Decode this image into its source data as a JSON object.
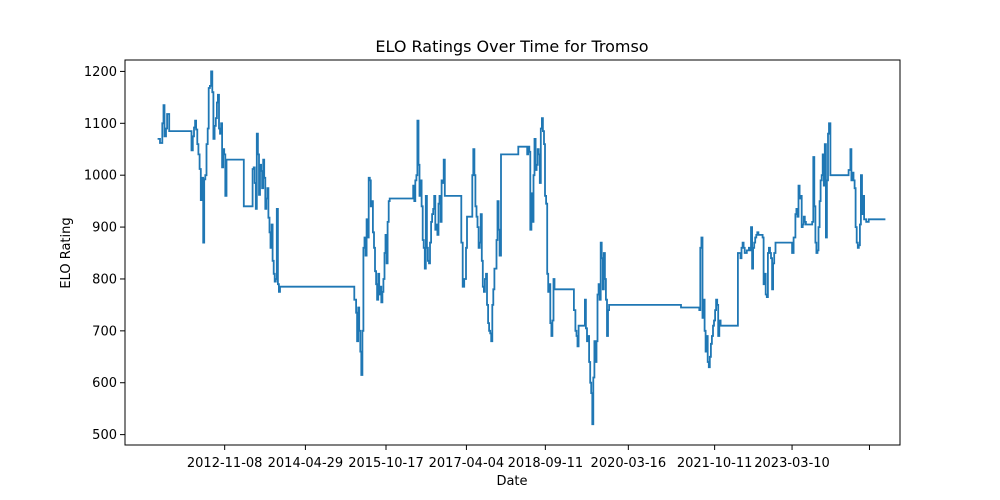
{
  "chart_data": {
    "type": "line",
    "title": "ELO Ratings Over Time for Tromso",
    "xlabel": "Date",
    "ylabel": "ELO Rating",
    "x_tick_labels": [
      "2012-11-08",
      "2014-04-29",
      "2015-10-17",
      "2017-04-04",
      "2018-09-11",
      "2020-03-16",
      "2021-10-11",
      "2023-03-10"
    ],
    "y_ticks": [
      500,
      600,
      700,
      800,
      900,
      1000,
      1100,
      1200
    ],
    "xlim": [
      "2011-01-15",
      "2025-02-25"
    ],
    "ylim": [
      480,
      1222
    ],
    "grid": false,
    "line_color": "#1f77b4",
    "series": [
      {
        "x": [
          "2011-08-20",
          "2011-09-05",
          "2011-09-20",
          "2011-09-28",
          "2011-10-05",
          "2011-10-15",
          "2011-10-22",
          "2011-11-05",
          "2012-04-01",
          "2012-04-10",
          "2012-04-18",
          "2012-04-25",
          "2012-05-02",
          "2012-05-10",
          "2012-05-17",
          "2012-05-25",
          "2012-06-02",
          "2012-06-10",
          "2012-06-18",
          "2012-06-25",
          "2012-07-02",
          "2012-07-10",
          "2012-07-18",
          "2012-07-25",
          "2012-08-02",
          "2012-08-10",
          "2012-08-18",
          "2012-08-25",
          "2012-09-02",
          "2012-09-10",
          "2012-09-17",
          "2012-09-24",
          "2012-10-01",
          "2012-10-08",
          "2012-10-15",
          "2012-10-22",
          "2012-10-29",
          "2012-11-05",
          "2012-11-12",
          "2012-11-20",
          "2013-03-15",
          "2013-04-01",
          "2013-04-08",
          "2013-04-15",
          "2013-04-22",
          "2013-04-29",
          "2013-05-06",
          "2013-05-13",
          "2013-05-20",
          "2013-05-27",
          "2013-06-03",
          "2013-06-10",
          "2013-06-17",
          "2013-06-24",
          "2013-07-01",
          "2013-07-08",
          "2013-07-15",
          "2013-07-22",
          "2013-07-29",
          "2013-08-05",
          "2013-08-12",
          "2013-08-19",
          "2013-08-26",
          "2013-09-02",
          "2013-09-09",
          "2013-09-16",
          "2013-09-23",
          "2013-09-30",
          "2013-10-07",
          "2013-10-14",
          "2013-10-21",
          "2013-10-28",
          "2013-11-04",
          "2013-11-11",
          "2015-03-10",
          "2015-03-20",
          "2015-04-01",
          "2015-04-08",
          "2015-04-15",
          "2015-04-22",
          "2015-04-29",
          "2015-05-06",
          "2015-05-13",
          "2015-05-20",
          "2015-05-27",
          "2015-06-03",
          "2015-06-10",
          "2015-06-17",
          "2015-06-24",
          "2015-07-01",
          "2015-07-08",
          "2015-07-15",
          "2015-07-22",
          "2015-07-29",
          "2015-08-05",
          "2015-08-12",
          "2015-08-19",
          "2015-08-26",
          "2015-09-02",
          "2015-09-09",
          "2015-09-16",
          "2015-09-23",
          "2015-09-30",
          "2015-10-07",
          "2015-10-14",
          "2015-10-21",
          "2015-10-28",
          "2015-11-04",
          "2015-11-11",
          "2016-03-01",
          "2016-03-10",
          "2016-03-20",
          "2016-04-01",
          "2016-04-08",
          "2016-04-15",
          "2016-04-22",
          "2016-04-29",
          "2016-05-06",
          "2016-05-13",
          "2016-05-20",
          "2016-05-27",
          "2016-06-03",
          "2016-06-10",
          "2016-06-17",
          "2016-06-24",
          "2016-07-01",
          "2016-07-08",
          "2016-07-15",
          "2016-07-22",
          "2016-07-29",
          "2016-08-05",
          "2016-08-12",
          "2016-08-19",
          "2016-08-26",
          "2016-09-02",
          "2016-09-09",
          "2016-09-16",
          "2016-09-23",
          "2016-09-30",
          "2016-10-07",
          "2016-10-14",
          "2016-10-21",
          "2016-10-28",
          "2016-11-04",
          "2016-11-11",
          "2017-03-01",
          "2017-03-10",
          "2017-03-20",
          "2017-04-01",
          "2017-04-08",
          "2017-04-15",
          "2017-04-22",
          "2017-04-29",
          "2017-05-06",
          "2017-05-13",
          "2017-05-20",
          "2017-05-27",
          "2017-06-03",
          "2017-06-10",
          "2017-06-17",
          "2017-06-24",
          "2017-07-01",
          "2017-07-08",
          "2017-07-15",
          "2017-07-22",
          "2017-07-29",
          "2017-08-05",
          "2017-08-12",
          "2017-08-19",
          "2017-08-26",
          "2017-09-02",
          "2017-09-09",
          "2017-09-16",
          "2017-09-23",
          "2017-09-30",
          "2017-10-07",
          "2017-10-14",
          "2017-10-21",
          "2017-10-28",
          "2017-11-04",
          "2017-11-11",
          "2017-11-20",
          "2018-03-15",
          "2018-04-01",
          "2018-04-08",
          "2018-04-15",
          "2018-04-22",
          "2018-04-29",
          "2018-05-06",
          "2018-05-13",
          "2018-05-20",
          "2018-05-27",
          "2018-06-03",
          "2018-06-10",
          "2018-06-17",
          "2018-06-24",
          "2018-07-01",
          "2018-07-08",
          "2018-07-15",
          "2018-07-22",
          "2018-07-29",
          "2018-08-05",
          "2018-08-12",
          "2018-08-19",
          "2018-08-26",
          "2018-09-02",
          "2018-09-09",
          "2018-09-16",
          "2018-09-23",
          "2018-09-30",
          "2018-10-07",
          "2018-10-14",
          "2018-10-21",
          "2018-10-28",
          "2018-11-04",
          "2018-11-11",
          "2019-03-20",
          "2019-03-30",
          "2019-04-06",
          "2019-04-13",
          "2019-04-20",
          "2019-04-27",
          "2019-05-04",
          "2019-05-11",
          "2019-05-18",
          "2019-05-25",
          "2019-06-01",
          "2019-06-08",
          "2019-06-15",
          "2019-06-22",
          "2019-06-29",
          "2019-07-06",
          "2019-07-13",
          "2019-07-20",
          "2019-07-27",
          "2019-08-03",
          "2019-08-10",
          "2019-08-17",
          "2019-08-24",
          "2019-08-31",
          "2019-09-07",
          "2019-09-14",
          "2019-09-21",
          "2019-09-28",
          "2019-10-05",
          "2019-10-12",
          "2019-10-19",
          "2019-10-26",
          "2019-11-02",
          "2019-11-09",
          "2021-03-01",
          "2021-03-10",
          "2021-03-20",
          "2021-04-01",
          "2021-04-08",
          "2021-04-15",
          "2021-04-22",
          "2021-04-29",
          "2021-05-06",
          "2021-05-13",
          "2021-05-20",
          "2021-05-27",
          "2021-06-03",
          "2021-06-10",
          "2021-06-17",
          "2021-06-24",
          "2021-07-01",
          "2021-07-08",
          "2021-07-15",
          "2021-07-22",
          "2021-07-29",
          "2021-08-05",
          "2021-08-12",
          "2021-08-19",
          "2021-08-26",
          "2021-09-02",
          "2021-09-09",
          "2021-09-16",
          "2021-09-23",
          "2021-09-30",
          "2021-10-07",
          "2021-10-14",
          "2021-10-21",
          "2021-10-28",
          "2021-11-04",
          "2021-11-11",
          "2021-11-20",
          "2022-03-15",
          "2022-04-01",
          "2022-04-08",
          "2022-04-15",
          "2022-04-22",
          "2022-04-29",
          "2022-05-06",
          "2022-05-13",
          "2022-05-20",
          "2022-05-27",
          "2022-06-03",
          "2022-06-10",
          "2022-06-17",
          "2022-06-24",
          "2022-07-01",
          "2022-07-08",
          "2022-07-15",
          "2022-07-22",
          "2022-07-29",
          "2022-08-05",
          "2022-08-12",
          "2022-08-19",
          "2022-08-26",
          "2022-09-02",
          "2022-09-09",
          "2022-09-16",
          "2022-09-23",
          "2022-09-30",
          "2022-10-07",
          "2022-10-14",
          "2022-10-21",
          "2022-10-28",
          "2022-11-04",
          "2022-11-11",
          "2022-11-20",
          "2023-03-10",
          "2023-03-20",
          "2023-04-01",
          "2023-04-08",
          "2023-04-15",
          "2023-04-22",
          "2023-04-29",
          "2023-05-06",
          "2023-05-13",
          "2023-05-20",
          "2023-05-27",
          "2023-06-03",
          "2023-06-10",
          "2023-06-17",
          "2023-06-24",
          "2023-07-01",
          "2023-07-08",
          "2023-07-15",
          "2023-07-22",
          "2023-07-29",
          "2023-08-05",
          "2023-08-12",
          "2023-08-19",
          "2023-08-26",
          "2023-09-02",
          "2023-09-09",
          "2023-09-16",
          "2023-09-23",
          "2023-09-30",
          "2023-10-07",
          "2023-10-14",
          "2023-10-21",
          "2023-10-28",
          "2023-11-04",
          "2023-11-11",
          "2023-11-20",
          "2024-03-20",
          "2024-04-01",
          "2024-04-08",
          "2024-04-15",
          "2024-04-22",
          "2024-04-29",
          "2024-05-06",
          "2024-05-13",
          "2024-05-20",
          "2024-05-27",
          "2024-06-03",
          "2024-06-10",
          "2024-06-17",
          "2024-06-24",
          "2024-07-01",
          "2024-07-15",
          "2024-08-01",
          "2024-10-01",
          "2024-11-20"
        ],
        "y": [
          1070,
          1062,
          1100,
          1135,
          1075,
          1090,
          1118,
          1085,
          1048,
          1075,
          1092,
          1105,
          1088,
          1060,
          1040,
          1012,
          952,
          995,
          870,
          992,
          1000,
          1060,
          1090,
          1168,
          1172,
          1200,
          1160,
          1070,
          1095,
          1110,
          1140,
          1155,
          1090,
          1080,
          1100,
          1015,
          1050,
          1040,
          960,
          1030,
          940,
          940,
          940,
          940,
          940,
          940,
          940,
          1012,
          1015,
          985,
          935,
          1080,
          1040,
          962,
          1020,
          1008,
          975,
          1030,
          995,
          935,
          955,
          975,
          918,
          890,
          860,
          905,
          835,
          810,
          795,
          800,
          935,
          790,
          775,
          785,
          785,
          760,
          735,
          680,
          745,
          700,
          660,
          615,
          700,
          860,
          880,
          845,
          915,
          880,
          995,
          990,
          940,
          950,
          890,
          860,
          815,
          790,
          760,
          810,
          770,
          785,
          755,
          775,
          800,
          850,
          885,
          830,
          910,
          950,
          955,
          955,
          955,
          955,
          955,
          955,
          980,
          950,
          990,
          1000,
          1105,
          1020,
          960,
          990,
          940,
          875,
          860,
          820,
          960,
          860,
          835,
          830,
          870,
          910,
          925,
          935,
          960,
          895,
          905,
          885,
          945,
          960,
          910,
          990,
          985,
          1030,
          960,
          870,
          785,
          800,
          860,
          920,
          920,
          920,
          920,
          920,
          1000,
          1050,
          1000,
          940,
          920,
          900,
          860,
          870,
          925,
          835,
          785,
          775,
          800,
          810,
          750,
          715,
          700,
          695,
          680,
          750,
          780,
          820,
          820,
          875,
          950,
          895,
          845,
          1040,
          1055,
          1055,
          1055,
          1055,
          1055,
          1055,
          1055,
          1040,
          1055,
          1045,
          895,
          965,
          910,
          1000,
          1070,
          1010,
          1020,
          1050,
          1040,
          985,
          1090,
          1110,
          1085,
          1060,
          960,
          945,
          810,
          775,
          790,
          715,
          690,
          720,
          800,
          780,
          740,
          700,
          690,
          670,
          710,
          710,
          710,
          710,
          710,
          710,
          760,
          705,
          680,
          690,
          640,
          600,
          580,
          520,
          610,
          680,
          640,
          680,
          770,
          790,
          760,
          870,
          840,
          780,
          850,
          800,
          760,
          690,
          740,
          750,
          745,
          745,
          745,
          745,
          745,
          745,
          745,
          745,
          745,
          745,
          745,
          745,
          745,
          745,
          745,
          745,
          740,
          860,
          880,
          725,
          760,
          700,
          660,
          690,
          640,
          630,
          650,
          675,
          690,
          710,
          720,
          740,
          760,
          750,
          690,
          720,
          710,
          850,
          840,
          860,
          870,
          860,
          850,
          850,
          855,
          855,
          860,
          855,
          900,
          820,
          860,
          870,
          880,
          885,
          890,
          885,
          885,
          885,
          885,
          880,
          790,
          810,
          770,
          765,
          850,
          860,
          850,
          840,
          780,
          830,
          850,
          870,
          850,
          880,
          925,
          935,
          920,
          980,
          955,
          960,
          900,
          905,
          920,
          910,
          905,
          905,
          905,
          905,
          905,
          905,
          910,
          1035,
          940,
          870,
          850,
          855,
          900,
          950,
          990,
          1000,
          1040,
          980,
          1060,
          880,
          990,
          1080,
          1100,
          1000,
          1010,
          1050,
          990,
          1005,
          990,
          975,
          900,
          870,
          860,
          865,
          905,
          1000,
          925,
          960,
          915,
          910,
          915,
          915,
          915
        ]
      }
    ]
  }
}
